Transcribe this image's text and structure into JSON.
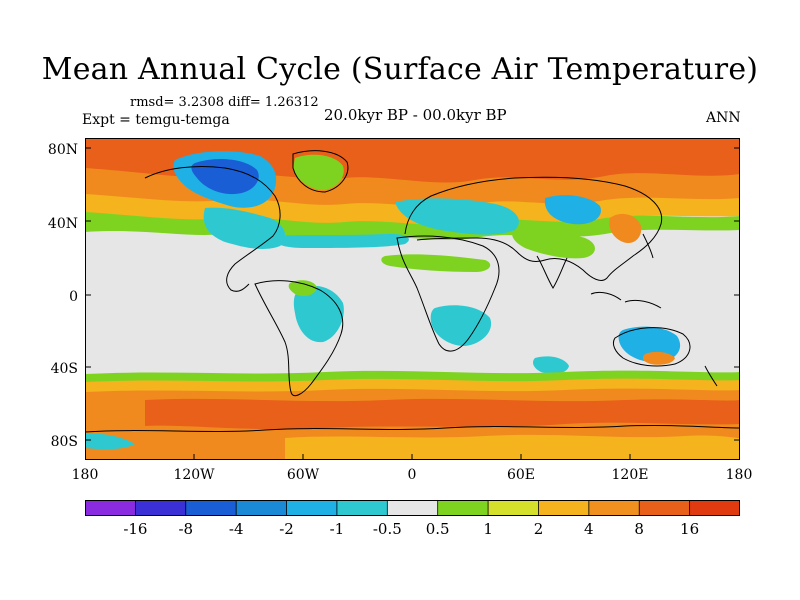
{
  "title": "Mean Annual Cycle (Surface Air Temperature)",
  "stats": "rmsd= 3.2308 diff= 1.26312",
  "experiment": "Expt = temgu-temga",
  "period": "20.0kyr BP - 00.0kyr BP",
  "season": "ANN",
  "map": {
    "lat_labels": [
      "80N",
      "40N",
      "0",
      "40S",
      "80S"
    ],
    "lon_labels": [
      "180",
      "120W",
      "60W",
      "0",
      "60E",
      "120E",
      "180"
    ],
    "colors": {
      "ocean_neutral": "#e6e6e6",
      "warm_8_16": "#e8601a",
      "warm_4_8": "#f08a1e",
      "warm_2_4": "#f5b31e",
      "warm_1_2": "#d4e02a",
      "warm_05_1": "#7ed321",
      "cool_05_1": "#2ec9d0",
      "cool_1_2": "#1fb0e6",
      "cool_2_4": "#1a8ad6",
      "cool_4_8": "#1a5ed6",
      "coast": "#000000"
    }
  },
  "colorbar": {
    "labels": [
      "-16",
      "-8",
      "-4",
      "-2",
      "-1",
      "-0.5",
      "0.5",
      "1",
      "2",
      "4",
      "8",
      "16"
    ],
    "colors": [
      "#8a2be2",
      "#3b2fd6",
      "#1a5ed6",
      "#1a8ad6",
      "#1fb0e6",
      "#2ec9d0",
      "#e6e6e6",
      "#7ed321",
      "#d4e02a",
      "#f5b31e",
      "#f0901e",
      "#e8601a",
      "#e03a10"
    ]
  }
}
